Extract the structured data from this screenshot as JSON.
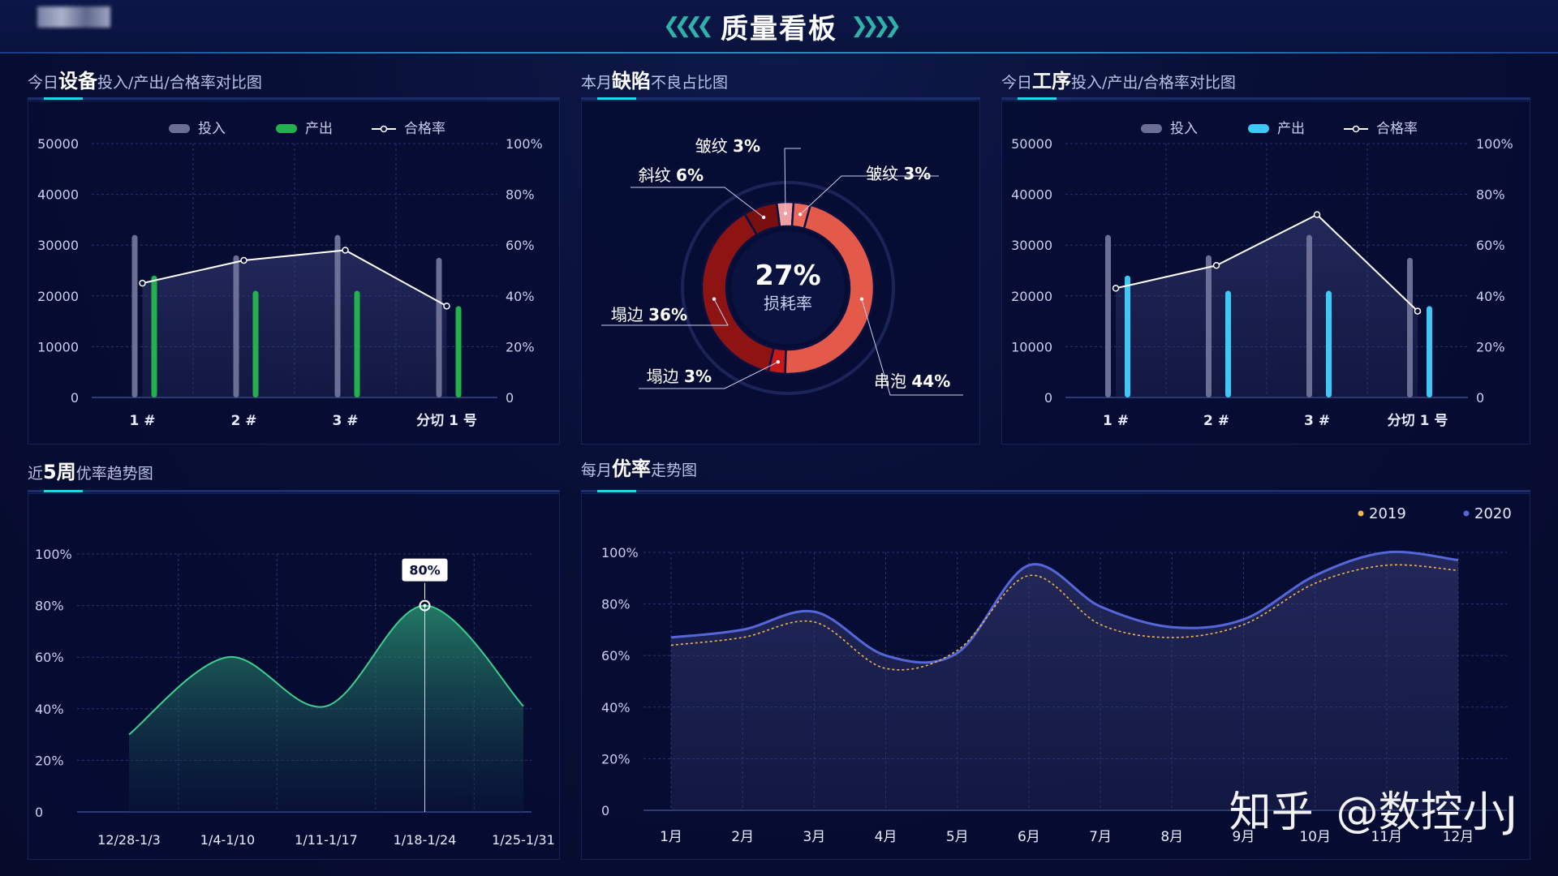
{
  "header": {
    "title": "质量看板"
  },
  "sections": {
    "equip": {
      "prefix": "今日",
      "bold": "设备",
      "suffix": "投入/产出/合格率对比图"
    },
    "defect": {
      "prefix": "本月",
      "bold": "缺陷",
      "suffix": "不良占比图"
    },
    "process": {
      "prefix": "今日",
      "bold": "工序",
      "suffix": "投入/产出/合格率对比图"
    },
    "weekly": {
      "prefix": "近",
      "bold": "5周",
      "suffix": "优率趋势图"
    },
    "monthly": {
      "prefix": "每月",
      "bold": "优率",
      "suffix": "走势图"
    }
  },
  "watermark": {
    "site": "知乎",
    "handle": "@数控小J"
  },
  "colors": {
    "input": "#6b6f95",
    "output_green": "#22b14c",
    "output_cyan": "#3ec8f5",
    "rate_line": "#ffffff",
    "area_green": "#2ea77a",
    "line_2019": "#f0b44c",
    "line_2020": "#5467d8"
  },
  "chart_data": [
    {
      "id": "equip",
      "type": "bar",
      "categories": [
        "1 #",
        "2 #",
        "3 #",
        "分切 1 号"
      ],
      "series": [
        {
          "name": "投入",
          "values": [
            32000,
            28000,
            32000,
            27500
          ]
        },
        {
          "name": "产出",
          "values": [
            24000,
            21000,
            21000,
            18000
          ]
        },
        {
          "name": "合格率",
          "values": [
            45,
            54,
            58,
            36
          ]
        }
      ],
      "yticks_left": [
        "50000",
        "40000",
        "30000",
        "20000",
        "10000",
        "0"
      ],
      "yticks_right": [
        "100%",
        "80%",
        "60%",
        "40%",
        "20%",
        "0"
      ],
      "ylim": [
        0,
        50000
      ],
      "ylim_right": [
        0,
        100
      ]
    },
    {
      "id": "defect",
      "type": "pie",
      "center": {
        "value": "27%",
        "label": "损耗率"
      },
      "slices": [
        {
          "name": "皱纹",
          "value": 3,
          "label": "3%",
          "color": "#f0a0a0"
        },
        {
          "name": "皱纹",
          "value": 3,
          "label": "3%",
          "color": "#e9685a"
        },
        {
          "name": "串泡",
          "value": 44,
          "label": "44%",
          "color": "#e45a4a"
        },
        {
          "name": "塌边",
          "value": 3,
          "label": "3%",
          "color": "#c41a1a"
        },
        {
          "name": "塌边",
          "value": 36,
          "label": "36%",
          "color": "#8e1414"
        },
        {
          "name": "斜纹",
          "value": 6,
          "label": "6%",
          "color": "#7a0f10"
        }
      ]
    },
    {
      "id": "process",
      "type": "bar",
      "categories": [
        "1 #",
        "2 #",
        "3 #",
        "分切 1 号"
      ],
      "series": [
        {
          "name": "投入",
          "values": [
            32000,
            28000,
            32000,
            27500
          ]
        },
        {
          "name": "产出",
          "values": [
            24000,
            21000,
            21000,
            18000
          ]
        },
        {
          "name": "合格率",
          "values": [
            43,
            52,
            72,
            34
          ]
        }
      ],
      "yticks_left": [
        "50000",
        "40000",
        "30000",
        "20000",
        "10000",
        "0"
      ],
      "yticks_right": [
        "100%",
        "80%",
        "60%",
        "40%",
        "20%",
        "0"
      ],
      "ylim": [
        0,
        50000
      ],
      "ylim_right": [
        0,
        100
      ]
    },
    {
      "id": "weekly",
      "type": "area",
      "categories": [
        "12/28-1/3",
        "1/4-1/10",
        "1/11-1/17",
        "1/18-1/24",
        "1/25-1/31"
      ],
      "values": [
        30,
        60,
        41,
        80,
        41
      ],
      "yticks": [
        "100%",
        "80%",
        "60%",
        "40%",
        "20%",
        "0"
      ],
      "ylim": [
        0,
        100
      ],
      "annotation": {
        "index": 3,
        "label": "80%"
      }
    },
    {
      "id": "monthly",
      "type": "line",
      "categories": [
        "1月",
        "2月",
        "3月",
        "4月",
        "5月",
        "6月",
        "7月",
        "8月",
        "9月",
        "10月",
        "11月",
        "12月"
      ],
      "series": [
        {
          "name": "2019",
          "values": [
            64,
            67,
            73,
            55,
            62,
            91,
            72,
            67,
            72,
            88,
            95,
            93
          ]
        },
        {
          "name": "2020",
          "values": [
            67,
            70,
            77,
            60,
            61,
            95,
            79,
            71,
            74,
            91,
            100,
            97
          ]
        }
      ],
      "yticks": [
        "100%",
        "80%",
        "60%",
        "40%",
        "20%",
        "0"
      ],
      "ylim": [
        0,
        100
      ]
    }
  ]
}
